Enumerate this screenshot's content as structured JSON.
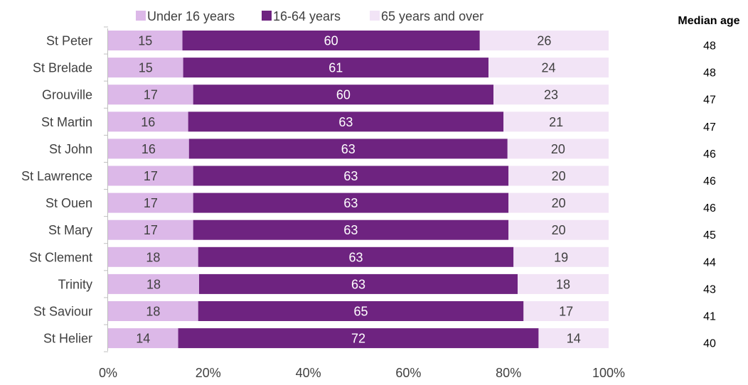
{
  "colors": {
    "under16": "#dcb8e8",
    "age16to64": "#6e2380",
    "over65": "#f2e4f6",
    "axis": "#bfbfbf",
    "text": "#404040"
  },
  "median_header": "Median age",
  "chart_data": {
    "type": "bar",
    "orientation": "horizontal",
    "stacked": true,
    "categories": [
      "St Peter",
      "St Brelade",
      "Grouville",
      "St Martin",
      "St John",
      "St Lawrence",
      "St Ouen",
      "St Mary",
      "St Clement",
      "Trinity",
      "St Saviour",
      "St Helier"
    ],
    "series": [
      {
        "name": "Under 16 years",
        "values": [
          15,
          15,
          17,
          16,
          16,
          17,
          17,
          17,
          18,
          18,
          18,
          14
        ]
      },
      {
        "name": "16-64 years",
        "values": [
          60,
          61,
          60,
          63,
          63,
          63,
          63,
          63,
          63,
          63,
          65,
          72
        ]
      },
      {
        "name": "65 years and over",
        "values": [
          26,
          24,
          23,
          21,
          20,
          20,
          20,
          20,
          19,
          18,
          17,
          14
        ]
      }
    ],
    "median_age": [
      48,
      48,
      47,
      47,
      46,
      46,
      46,
      45,
      44,
      43,
      41,
      40
    ],
    "xlim": [
      0,
      100
    ],
    "x_ticks": [
      "0%",
      "20%",
      "40%",
      "60%",
      "80%",
      "100%"
    ],
    "legend_position": "top",
    "grid": false
  }
}
